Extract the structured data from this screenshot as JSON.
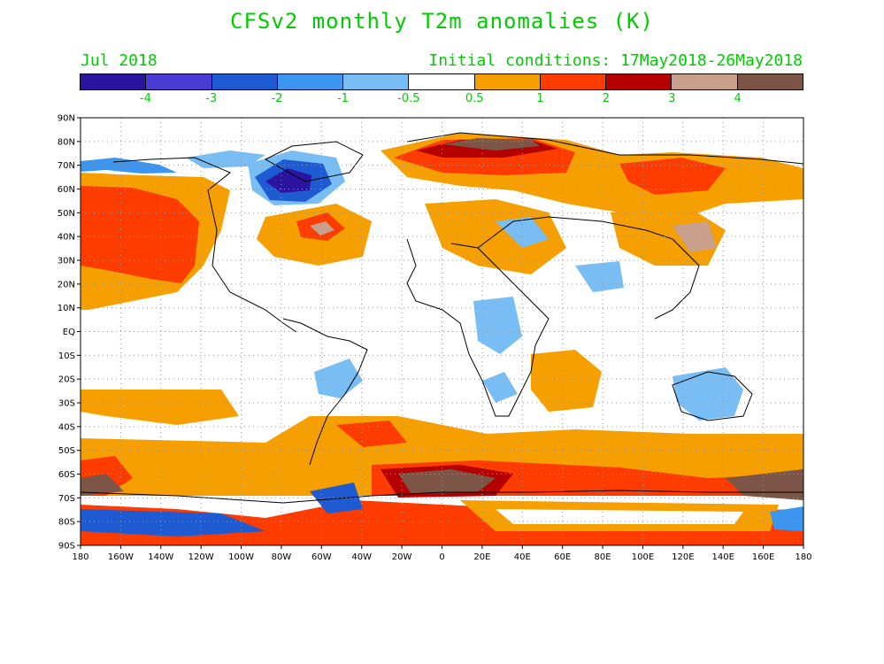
{
  "title": "CFSv2 monthly T2m anomalies (K)",
  "month_label": "Jul 2018",
  "init_label": "Initial conditions: 17May2018-26May2018",
  "colorbar": {
    "colors": [
      "#2a14a0",
      "#4a3cd2",
      "#1e5ad2",
      "#3c96f0",
      "#78bef5",
      "#ffffff",
      "#f5a000",
      "#ff3c00",
      "#b40000",
      "#c8a08c",
      "#7d5546"
    ],
    "labels": [
      "-4",
      "-3",
      "-2",
      "-1",
      "-0.5",
      "0.5",
      "1",
      "2",
      "3",
      "4"
    ]
  },
  "axes": {
    "lat_labels": [
      "90N",
      "80N",
      "70N",
      "60N",
      "50N",
      "40N",
      "30N",
      "20N",
      "10N",
      "EQ",
      "10S",
      "20S",
      "30S",
      "40S",
      "50S",
      "60S",
      "70S",
      "80S",
      "90S"
    ],
    "lon_labels": [
      "180",
      "160W",
      "140W",
      "120W",
      "100W",
      "80W",
      "60W",
      "40W",
      "20W",
      "0",
      "20E",
      "40E",
      "60E",
      "80E",
      "100E",
      "120E",
      "140E",
      "160E",
      "180"
    ]
  }
}
